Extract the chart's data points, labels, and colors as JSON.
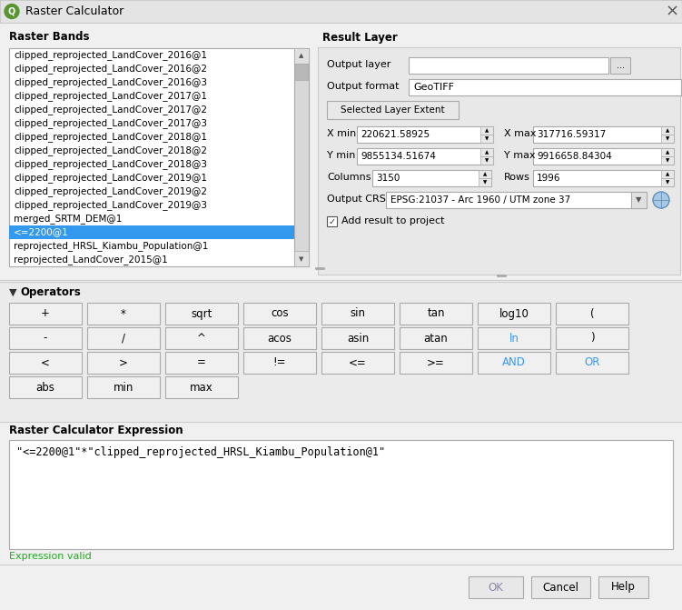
{
  "title": "Raster Calculator",
  "dialog_bg": "#f0f0f0",
  "raster_bands_label": "Raster Bands",
  "raster_bands": [
    "clipped_reprojected_LandCover_2016@1",
    "clipped_reprojected_LandCover_2016@2",
    "clipped_reprojected_LandCover_2016@3",
    "clipped_reprojected_LandCover_2017@1",
    "clipped_reprojected_LandCover_2017@2",
    "clipped_reprojected_LandCover_2017@3",
    "clipped_reprojected_LandCover_2018@1",
    "clipped_reprojected_LandCover_2018@2",
    "clipped_reprojected_LandCover_2018@3",
    "clipped_reprojected_LandCover_2019@1",
    "clipped_reprojected_LandCover_2019@2",
    "clipped_reprojected_LandCover_2019@3",
    "merged_SRTM_DEM@1",
    "<=2200@1",
    "reprojected_HRSL_Kiambu_Population@1",
    "reprojected_LandCover_2015@1"
  ],
  "selected_band_index": 13,
  "result_layer_label": "Result Layer",
  "output_layer_label": "Output layer",
  "output_format_label": "Output format",
  "output_format_value": "GeoTIFF",
  "selected_layer_extent_btn": "Selected Layer Extent",
  "x_min_label": "X min",
  "x_min_value": "220621.58925",
  "x_max_label": "X max",
  "x_max_value": "317716.59317",
  "y_min_label": "Y min",
  "y_min_value": "9855134.51674",
  "y_max_label": "Y max",
  "y_max_value": "9916658.84304",
  "columns_label": "Columns",
  "columns_value": "3150",
  "rows_label": "Rows",
  "rows_value": "1996",
  "output_crs_label": "Output CRS",
  "output_crs_value": "EPSG:21037 - Arc 1960 / UTM zone 37",
  "add_result_label": "Add result to project",
  "operators_label": "Operators",
  "operators_row1": [
    "+",
    "*",
    "sqrt",
    "cos",
    "sin",
    "tan",
    "log10",
    "("
  ],
  "operators_row2": [
    "-",
    "/",
    "^",
    "acos",
    "asin",
    "atan",
    "ln",
    ")"
  ],
  "operators_row3": [
    "<",
    ">",
    "=",
    "!=",
    "<=",
    ">=",
    "AND",
    "OR"
  ],
  "operators_row4": [
    "abs",
    "min",
    "max"
  ],
  "expression_label": "Raster Calculator Expression",
  "expression_text": "\"<=2200@1\"*\"clipped_reprojected_HRSL_Kiambu_Population@1\"",
  "expression_valid": "Expression valid",
  "btn_ok": "OK",
  "btn_cancel": "Cancel",
  "btn_help": "Help",
  "ln_color": "#3399ff",
  "and_color": "#3399ff",
  "or_color": "#3399ff"
}
